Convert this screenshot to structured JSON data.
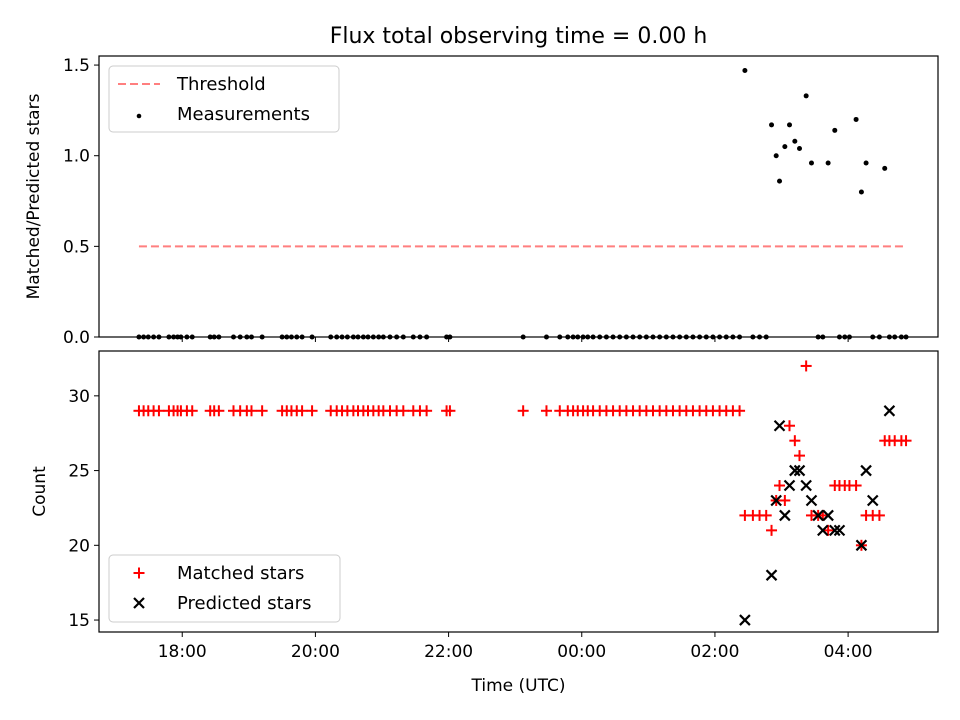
{
  "chart_data": [
    {
      "type": "scatter",
      "title": "Flux total observing time = 0.00 h",
      "ylabel": "Matched/Predicted stars",
      "xlabel": "",
      "ylim": [
        0.0,
        1.55
      ],
      "yticks": [
        0.0,
        0.5,
        1.0,
        1.5
      ],
      "ytick_labels": [
        "0.0",
        "0.5",
        "1.0",
        "1.5"
      ],
      "xlim": [
        16.75,
        29.35
      ],
      "xticks": [
        18,
        20,
        22,
        24,
        26,
        28
      ],
      "grid": false,
      "legend": {
        "placement": "upper-left",
        "entries": [
          "Threshold",
          "Measurements"
        ]
      },
      "series": [
        {
          "name": "Threshold",
          "style": "dashed-line",
          "color": "#ff7f7f",
          "x": [
            17.35,
            28.85
          ],
          "y": [
            0.5,
            0.5
          ]
        },
        {
          "name": "Measurements",
          "style": "dot",
          "color": "#000000",
          "x": [
            17.35,
            17.42,
            17.49,
            17.57,
            17.65,
            17.8,
            17.87,
            17.93,
            17.98,
            18.07,
            18.15,
            18.42,
            18.48,
            18.55,
            18.77,
            18.87,
            18.97,
            19.04,
            19.2,
            19.5,
            19.57,
            19.64,
            19.72,
            19.8,
            19.95,
            20.23,
            20.32,
            20.4,
            20.48,
            20.57,
            20.64,
            20.72,
            20.79,
            20.87,
            20.95,
            21.02,
            21.12,
            21.22,
            21.32,
            21.47,
            21.57,
            21.67,
            21.97,
            22.02,
            23.12,
            23.47,
            23.67,
            23.79,
            23.87,
            23.94,
            24.02,
            24.09,
            24.17,
            24.27,
            24.37,
            24.47,
            24.57,
            24.67,
            24.77,
            24.87,
            24.97,
            25.07,
            25.17,
            25.27,
            25.37,
            25.47,
            25.57,
            25.67,
            25.77,
            25.87,
            25.97,
            26.07,
            26.17,
            26.27,
            26.37,
            26.45,
            26.57,
            26.67,
            26.77,
            26.85,
            26.92,
            26.97,
            27.05,
            27.12,
            27.2,
            27.27,
            27.37,
            27.45,
            27.55,
            27.62,
            27.7,
            27.8,
            27.87,
            27.95,
            28.02,
            28.12,
            28.2,
            28.27,
            28.37,
            28.47,
            28.55,
            28.62,
            28.7,
            28.8,
            28.87
          ],
          "y": [
            0,
            0,
            0,
            0,
            0,
            0,
            0,
            0,
            0,
            0,
            0,
            0,
            0,
            0,
            0,
            0,
            0,
            0,
            0,
            0,
            0,
            0,
            0,
            0,
            0,
            0,
            0,
            0,
            0,
            0,
            0,
            0,
            0,
            0,
            0,
            0,
            0,
            0,
            0,
            0,
            0,
            0,
            0,
            0,
            0,
            0,
            0,
            0,
            0,
            0,
            0,
            0,
            0,
            0,
            0,
            0,
            0,
            0,
            0,
            0,
            0,
            0,
            0,
            0,
            0,
            0,
            0,
            0,
            0,
            0,
            0,
            0,
            0,
            0,
            0,
            1.47,
            0,
            0,
            0,
            1.17,
            1.0,
            0.86,
            1.05,
            1.17,
            1.08,
            1.04,
            1.33,
            0.96,
            0,
            0,
            0.96,
            1.14,
            0,
            0,
            0,
            1.2,
            0.8,
            0.96,
            0,
            0,
            0.93,
            0,
            0,
            0,
            0
          ]
        }
      ]
    },
    {
      "type": "scatter",
      "title": "",
      "ylabel": "Count",
      "xlabel": "Time (UTC)",
      "ylim": [
        14.2,
        33.0
      ],
      "yticks": [
        15,
        20,
        25,
        30
      ],
      "ytick_labels": [
        "15",
        "20",
        "25",
        "30"
      ],
      "xlim": [
        16.75,
        29.35
      ],
      "xticks": [
        18,
        20,
        22,
        24,
        26,
        28
      ],
      "xtick_labels": [
        "18:00",
        "20:00",
        "22:00",
        "00:00",
        "02:00",
        "04:00"
      ],
      "grid": false,
      "legend": {
        "placement": "lower-left",
        "entries": [
          "Matched stars",
          "Predicted stars"
        ]
      },
      "series": [
        {
          "name": "Matched stars",
          "style": "plus",
          "color": "#ff0000",
          "x": [
            17.35,
            17.42,
            17.49,
            17.57,
            17.65,
            17.8,
            17.87,
            17.93,
            17.98,
            18.07,
            18.15,
            18.42,
            18.48,
            18.55,
            18.77,
            18.87,
            18.97,
            19.04,
            19.2,
            19.5,
            19.57,
            19.64,
            19.72,
            19.8,
            19.95,
            20.23,
            20.32,
            20.4,
            20.48,
            20.57,
            20.64,
            20.72,
            20.79,
            20.87,
            20.95,
            21.02,
            21.12,
            21.22,
            21.32,
            21.47,
            21.57,
            21.67,
            21.97,
            22.02,
            23.12,
            23.47,
            23.67,
            23.79,
            23.87,
            23.94,
            24.02,
            24.09,
            24.17,
            24.27,
            24.37,
            24.47,
            24.57,
            24.67,
            24.77,
            24.87,
            24.97,
            25.07,
            25.17,
            25.27,
            25.37,
            25.47,
            25.57,
            25.67,
            25.77,
            25.87,
            25.97,
            26.07,
            26.17,
            26.27,
            26.37,
            26.45,
            26.57,
            26.67,
            26.77,
            26.85,
            26.92,
            26.97,
            27.05,
            27.12,
            27.2,
            27.27,
            27.37,
            27.45,
            27.55,
            27.62,
            27.7,
            27.8,
            27.87,
            27.95,
            28.02,
            28.12,
            28.2,
            28.27,
            28.37,
            28.47,
            28.55,
            28.62,
            28.7,
            28.8,
            28.87
          ],
          "y": [
            29,
            29,
            29,
            29,
            29,
            29,
            29,
            29,
            29,
            29,
            29,
            29,
            29,
            29,
            29,
            29,
            29,
            29,
            29,
            29,
            29,
            29,
            29,
            29,
            29,
            29,
            29,
            29,
            29,
            29,
            29,
            29,
            29,
            29,
            29,
            29,
            29,
            29,
            29,
            29,
            29,
            29,
            29,
            29,
            29,
            29,
            29,
            29,
            29,
            29,
            29,
            29,
            29,
            29,
            29,
            29,
            29,
            29,
            29,
            29,
            29,
            29,
            29,
            29,
            29,
            29,
            29,
            29,
            29,
            29,
            29,
            29,
            29,
            29,
            29,
            22,
            22,
            22,
            22,
            21,
            23,
            24,
            23,
            28,
            27,
            26,
            32,
            22,
            22,
            22,
            21,
            24,
            24,
            24,
            24,
            24,
            20,
            22,
            22,
            22,
            27,
            27,
            27,
            27,
            27
          ]
        },
        {
          "name": "Predicted stars",
          "style": "x",
          "color": "#000000",
          "x": [
            26.45,
            26.85,
            26.92,
            26.97,
            27.05,
            27.12,
            27.2,
            27.27,
            27.37,
            27.45,
            27.55,
            27.62,
            27.7,
            27.8,
            27.87,
            28.2,
            28.27,
            28.37,
            28.62
          ],
          "y": [
            15,
            18,
            23,
            28,
            22,
            24,
            25,
            25,
            24,
            23,
            22,
            21,
            22,
            21,
            21,
            20,
            25,
            23,
            29
          ]
        }
      ]
    }
  ]
}
